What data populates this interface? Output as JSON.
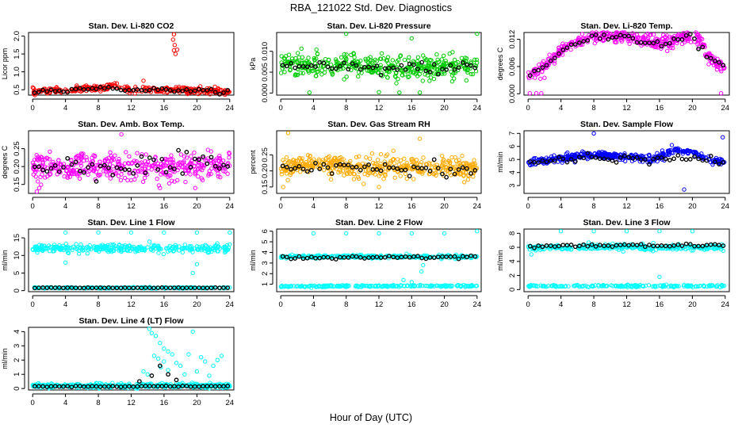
{
  "figure": {
    "title": "RBA_121022  Std. Dev. Diagnostics",
    "xlabel": "Hour of Day (UTC)"
  },
  "chart_data": [
    {
      "type": "scatter",
      "title": "Stan. Dev. Li-820 CO2",
      "ylabel": "Licor ppm",
      "xlim": [
        -0.5,
        24.5
      ],
      "xticks": [
        "0",
        "4",
        "8",
        "12",
        "16",
        "20",
        "24"
      ],
      "ylim": [
        0.35,
        2.1
      ],
      "yticks": [
        "0.5",
        "1.0",
        "1.5",
        "2.0"
      ],
      "series": [
        {
          "color": "#ff0000",
          "center": [
            0,
            0.45,
            4,
            0.48,
            8,
            0.55,
            10,
            0.6,
            12,
            0.5,
            16,
            0.5,
            20,
            0.48,
            24,
            0.45
          ],
          "noise": 0.07,
          "count": 320,
          "extra": [
            [
              17.2,
              2.05
            ],
            [
              17.1,
              1.9
            ],
            [
              17.3,
              1.75
            ],
            [
              17.2,
              1.6
            ],
            [
              17.4,
              1.5
            ],
            [
              17.6,
              1.62
            ],
            [
              13.5,
              0.75
            ],
            [
              10,
              0.68
            ]
          ]
        },
        {
          "color": "#000000",
          "center": [
            0,
            0.45,
            4,
            0.5,
            8,
            0.55,
            12,
            0.5,
            16,
            0.5,
            20,
            0.47,
            24,
            0.45
          ],
          "noise": 0.04,
          "count": 48,
          "extra": []
        }
      ]
    },
    {
      "type": "scatter",
      "title": "Stan. Dev. Li-820 Pressure",
      "ylabel": "kPa",
      "xlim": [
        -0.5,
        24.5
      ],
      "xticks": [
        "0",
        "4",
        "8",
        "12",
        "16",
        "20",
        "24"
      ],
      "ylim": [
        -0.0005,
        0.0145
      ],
      "yticks": [
        "0.000",
        "0.005",
        "0.010"
      ],
      "series": [
        {
          "color": "#00cc00",
          "center": [
            0,
            0.0072,
            4,
            0.0062,
            8,
            0.0065,
            12,
            0.0062,
            16,
            0.006,
            20,
            0.0062,
            24,
            0.0065
          ],
          "noise": 0.0022,
          "count": 420,
          "extra": [
            [
              8,
              0.0142
            ],
            [
              16,
              0.0131
            ],
            [
              24,
              0.0142
            ],
            [
              21,
              0.0098
            ],
            [
              3.5,
              0.0001
            ],
            [
              12,
              0.0002
            ],
            [
              17,
              0.0001
            ],
            [
              14.5,
              0.0001
            ]
          ]
        },
        {
          "color": "#000000",
          "center": [
            0,
            0.0062,
            4,
            0.0062,
            8,
            0.006,
            12,
            0.0058,
            16,
            0.006,
            20,
            0.006,
            24,
            0.0062
          ],
          "noise": 0.0012,
          "count": 48,
          "extra": []
        }
      ]
    },
    {
      "type": "scatter",
      "title": "Stan. Dev. Li-820 Temp.",
      "ylabel": "degrees C",
      "xlim": [
        -0.5,
        24.5
      ],
      "xticks": [
        "0",
        "4",
        "8",
        "12",
        "16",
        "20",
        "24"
      ],
      "ylim": [
        -0.0003,
        0.0135
      ],
      "yticks": [
        "0.000",
        "0.006",
        "0.012"
      ],
      "series": [
        {
          "color": "#ff00ff",
          "center": [
            0,
            0.004,
            2,
            0.006,
            4,
            0.0095,
            6,
            0.0115,
            8,
            0.0125,
            12,
            0.0125,
            14,
            0.0115,
            16,
            0.0112,
            18,
            0.0118,
            20,
            0.0125,
            21,
            0.012,
            22,
            0.008,
            24,
            0.0055
          ],
          "noise": 0.0012,
          "count": 400,
          "extra": [
            [
              0.2,
              0.0001
            ],
            [
              1,
              0.0001
            ],
            [
              1.6,
              0.0001
            ],
            [
              23.5,
              0.0001
            ],
            [
              2,
              0.0035
            ],
            [
              1.5,
              0.0033
            ]
          ]
        },
        {
          "color": "#000000",
          "center": [
            0,
            0.004,
            2,
            0.006,
            4,
            0.0095,
            6,
            0.0115,
            8,
            0.0125,
            12,
            0.0125,
            14,
            0.0115,
            16,
            0.0112,
            18,
            0.0118,
            20,
            0.0125,
            22,
            0.008,
            24,
            0.0055
          ],
          "noise": 0.0006,
          "count": 48,
          "extra": []
        }
      ]
    },
    {
      "type": "scatter",
      "title": "Stan. Dev. Amb. Box Temp.",
      "ylabel": "degrees C",
      "xlim": [
        -0.5,
        24.5
      ],
      "xticks": [
        "0",
        "4",
        "8",
        "12",
        "16",
        "20",
        "24"
      ],
      "ylim": [
        0.125,
        0.3
      ],
      "yticks": [
        "0.15",
        "0.20",
        "0.25"
      ],
      "series": [
        {
          "color": "#ff00ff",
          "center": [
            0,
            0.2,
            12,
            0.2,
            24,
            0.2
          ],
          "noise": 0.03,
          "count": 420,
          "extra": [
            [
              10.8,
              0.29
            ],
            [
              15.5,
              0.14
            ],
            [
              19.8,
              0.14
            ],
            [
              0.5,
              0.13
            ]
          ]
        },
        {
          "color": "#000000",
          "center": [
            0,
            0.2,
            12,
            0.2,
            24,
            0.2
          ],
          "noise": 0.028,
          "count": 48,
          "extra": []
        }
      ]
    },
    {
      "type": "scatter",
      "title": "Stan. Dev. Gas Stream RH",
      "ylabel": "percent",
      "xlim": [
        -0.5,
        24.5
      ],
      "xticks": [
        "0",
        "4",
        "8",
        "12",
        "16",
        "20",
        "24"
      ],
      "ylim": [
        0.13,
        0.325
      ],
      "yticks": [
        "0.15",
        "0.20",
        "0.25"
      ],
      "series": [
        {
          "color": "#ffaa00",
          "center": [
            0,
            0.21,
            4,
            0.22,
            8,
            0.21,
            12,
            0.21,
            16,
            0.21,
            20,
            0.21,
            24,
            0.2
          ],
          "noise": 0.028,
          "count": 440,
          "extra": [
            [
              0.9,
              0.318
            ],
            [
              17,
              0.3
            ],
            [
              0.3,
              0.15
            ],
            [
              12,
              0.15
            ]
          ]
        },
        {
          "color": "#000000",
          "center": [
            0,
            0.21,
            4,
            0.22,
            8,
            0.21,
            12,
            0.21,
            16,
            0.21,
            20,
            0.21,
            24,
            0.2
          ],
          "noise": 0.02,
          "count": 48,
          "extra": []
        }
      ]
    },
    {
      "type": "scatter",
      "title": "Stan. Dev. Sample Flow",
      "ylabel": "ml/min",
      "xlim": [
        -0.5,
        24.5
      ],
      "xticks": [
        "0",
        "4",
        "8",
        "12",
        "16",
        "20",
        "24"
      ],
      "ylim": [
        2.4,
        7.2
      ],
      "yticks": [
        "3",
        "4",
        "5",
        "6",
        "7"
      ],
      "series": [
        {
          "color": "#0000ff",
          "center": [
            0,
            4.8,
            4,
            5.1,
            8,
            5.4,
            12,
            5.2,
            15,
            5.0,
            18,
            5.7,
            20,
            5.6,
            22,
            5.0,
            24,
            4.8
          ],
          "noise": 0.22,
          "count": 420,
          "extra": [
            [
              8,
              7.0
            ],
            [
              23.7,
              6.7
            ],
            [
              17.5,
              6.1
            ],
            [
              19,
              2.7
            ]
          ]
        },
        {
          "color": "#000000",
          "center": [
            0,
            4.7,
            4,
            5.0,
            8,
            5.2,
            12,
            5.1,
            15,
            4.8,
            18,
            5.2,
            20,
            5.3,
            22,
            4.9,
            24,
            4.7
          ],
          "noise": 0.25,
          "count": 48,
          "extra": []
        }
      ]
    },
    {
      "type": "scatter",
      "title": "Stan. Dev. Line 1 Flow",
      "ylabel": "ml/min",
      "xlim": [
        -0.5,
        24.5
      ],
      "xticks": [
        "0",
        "4",
        "8",
        "12",
        "16",
        "20",
        "24"
      ],
      "ylim": [
        -0.3,
        17.5
      ],
      "yticks": [
        "0",
        "5",
        "10",
        "15"
      ],
      "series": [
        {
          "color": "#00ffff",
          "center": [
            0,
            12,
            24,
            12
          ],
          "noise": 0.9,
          "count": 320,
          "extra": [
            [
              4,
              16.5
            ],
            [
              8,
              16.5
            ],
            [
              12,
              16.5
            ],
            [
              16,
              16.5
            ],
            [
              20,
              16.5
            ],
            [
              24,
              16.5
            ],
            [
              19.5,
              5
            ],
            [
              20,
              7.5
            ],
            [
              4,
              8
            ]
          ]
        },
        {
          "color": "#00ffff",
          "center": [
            0,
            0.8,
            24,
            0.8
          ],
          "noise": 0.15,
          "count": 200,
          "extra": []
        },
        {
          "color": "#000000",
          "center": [
            0,
            0.8,
            24,
            0.8
          ],
          "noise": 0.05,
          "count": 48,
          "extra": []
        }
      ]
    },
    {
      "type": "scatter",
      "title": "Stan. Dev. Line 2 Flow",
      "ylabel": "ml/min",
      "xlim": [
        -0.5,
        24.5
      ],
      "xticks": [
        "0",
        "4",
        "8",
        "12",
        "16",
        "20",
        "24"
      ],
      "ylim": [
        0.3,
        6.2
      ],
      "yticks": [
        "1",
        "2",
        "3",
        "4",
        "5",
        "6"
      ],
      "series": [
        {
          "color": "#00ffff",
          "center": [
            0,
            3.6,
            24,
            3.6
          ],
          "noise": 0.12,
          "count": 300,
          "extra": [
            [
              4,
              5.8
            ],
            [
              8,
              5.8
            ],
            [
              12,
              5.8
            ],
            [
              16,
              5.8
            ],
            [
              20,
              5.8
            ],
            [
              24,
              6.0
            ],
            [
              17.2,
              2.2
            ],
            [
              17.4,
              2.8
            ],
            [
              15,
              1.4
            ],
            [
              16,
              1.2
            ]
          ]
        },
        {
          "color": "#00ffff",
          "center": [
            0,
            0.8,
            24,
            0.85
          ],
          "noise": 0.07,
          "count": 220,
          "extra": []
        },
        {
          "color": "#000000",
          "center": [
            0,
            3.5,
            24,
            3.6
          ],
          "noise": 0.12,
          "count": 48,
          "extra": []
        }
      ]
    },
    {
      "type": "scatter",
      "title": "Stan. Dev. Line 3 Flow",
      "ylabel": "ml/min",
      "xlim": [
        -0.5,
        24.5
      ],
      "xticks": [
        "0",
        "4",
        "8",
        "12",
        "16",
        "20",
        "24"
      ],
      "ylim": [
        -0.3,
        8.6
      ],
      "yticks": [
        "0",
        "2",
        "4",
        "6",
        "8"
      ],
      "series": [
        {
          "color": "#00ffff",
          "center": [
            0,
            6.0,
            24,
            6.0
          ],
          "noise": 0.35,
          "count": 320,
          "extra": [
            [
              4,
              8.3
            ],
            [
              8,
              8.3
            ],
            [
              12,
              8.3
            ],
            [
              16,
              8.3
            ],
            [
              20,
              8.3
            ],
            [
              16,
              1.8
            ],
            [
              0.4,
              5.0
            ]
          ]
        },
        {
          "color": "#00ffff",
          "center": [
            0,
            0.5,
            24,
            0.5
          ],
          "noise": 0.12,
          "count": 200,
          "extra": []
        },
        {
          "color": "#000000",
          "center": [
            0,
            6.2,
            24,
            6.3
          ],
          "noise": 0.2,
          "count": 48,
          "extra": []
        }
      ]
    },
    {
      "type": "scatter",
      "title": "Stan. Dev. Line 4 (LT) Flow",
      "ylabel": "ml/min",
      "xlim": [
        -0.5,
        24.5
      ],
      "xticks": [
        "0",
        "4",
        "8",
        "12",
        "16",
        "20",
        "24"
      ],
      "ylim": [
        -0.1,
        4.3
      ],
      "yticks": [
        "0",
        "1",
        "2",
        "3",
        "4"
      ],
      "series": [
        {
          "color": "#00ffff",
          "center": [
            0,
            0.2,
            12,
            0.2,
            24,
            0.2
          ],
          "noise": 0.12,
          "count": 420,
          "extra": [
            [
              14.2,
              4.2
            ],
            [
              14.5,
              3.9
            ],
            [
              15,
              3.7
            ],
            [
              15.5,
              3.2
            ],
            [
              16,
              2.8
            ],
            [
              16.5,
              2.6
            ],
            [
              17,
              2.4
            ],
            [
              14.8,
              2.3
            ],
            [
              15.3,
              2.1
            ],
            [
              16,
              1.9
            ],
            [
              17.5,
              1.8
            ],
            [
              18,
              1.6
            ],
            [
              19.5,
              4.0
            ],
            [
              19,
              2.4
            ],
            [
              20.5,
              2.2
            ],
            [
              21,
              1.9
            ],
            [
              22,
              1.6
            ],
            [
              22.5,
              2.0
            ],
            [
              23,
              2.3
            ],
            [
              13.5,
              1.2
            ],
            [
              16.5,
              1.3
            ],
            [
              18.5,
              1.0
            ],
            [
              20,
              1.2
            ],
            [
              21.5,
              0.9
            ],
            [
              14,
              1.0
            ],
            [
              15.6,
              1.5
            ]
          ]
        },
        {
          "color": "#000000",
          "center": [
            0,
            0.15,
            24,
            0.15
          ],
          "noise": 0.03,
          "count": 48,
          "extra": [
            [
              15.5,
              1.6
            ],
            [
              16.5,
              1.0
            ],
            [
              14.5,
              0.9
            ],
            [
              17.5,
              0.6
            ],
            [
              13,
              0.5
            ]
          ]
        }
      ]
    }
  ]
}
